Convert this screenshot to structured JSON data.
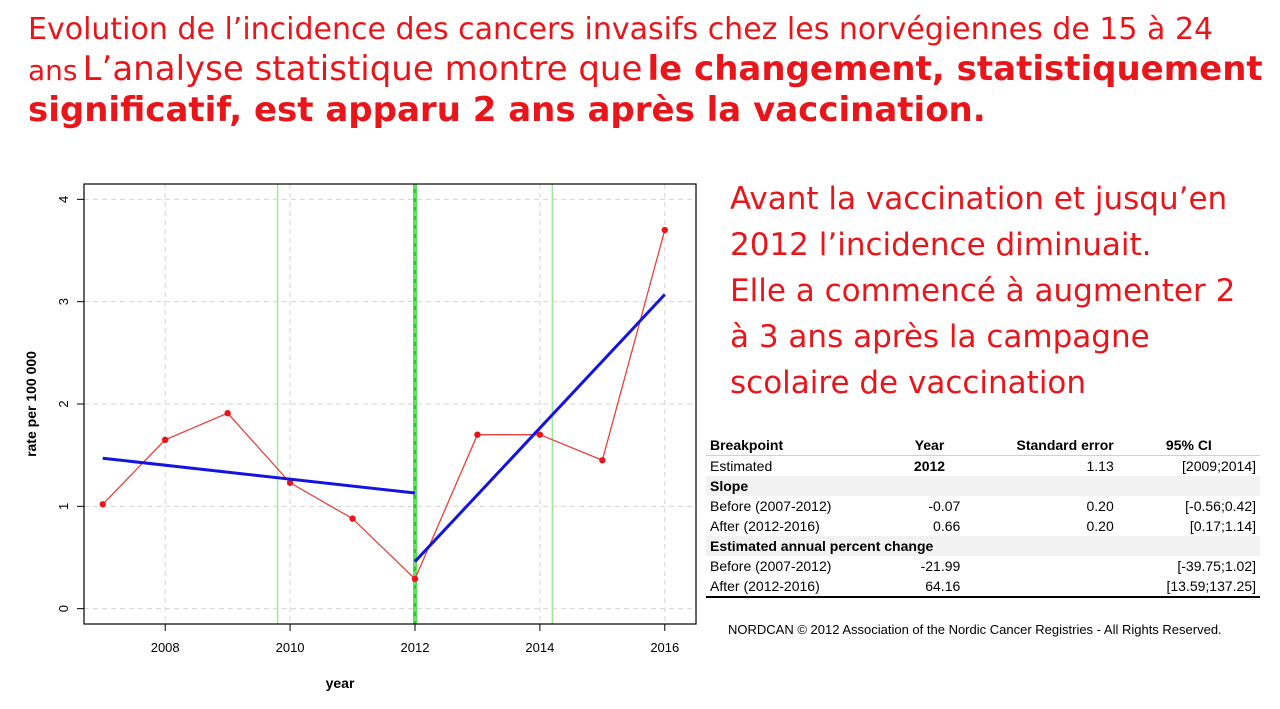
{
  "title": {
    "line1": "Evolution de l’incidence des cancers invasifs chez les norvégiennes de 15 à 24",
    "line2_prefix": "ans",
    "line2_normal": "L’analyse statistique montre que",
    "line2_bold": "le changement, statistiquement",
    "line3_bold": "significatif, est apparu 2 ans après la vaccination."
  },
  "side_text": [
    "Avant la vaccination et jusqu’en",
    "2012 l’incidence diminuait.",
    "Elle a commencé à augmenter 2",
    "à 3 ans après la campagne",
    "scolaire de vaccination"
  ],
  "colors": {
    "accent_text": "#e8161b",
    "observed_line": "#e8403c",
    "trend_line": "#1414e0",
    "breakpoint_line": "#1ed21e",
    "ci_line": "#9ee89e"
  },
  "chart_data": {
    "type": "line",
    "xlabel": "year",
    "ylabel": "rate per 100 000",
    "xlim": [
      2006.7,
      2016.5
    ],
    "ylim": [
      -0.15,
      4.15
    ],
    "xticks": [
      2008,
      2010,
      2012,
      2014,
      2016
    ],
    "yticks": [
      0,
      1,
      2,
      3,
      4
    ],
    "grid": true,
    "series": [
      {
        "role": "observed",
        "x": [
          2007,
          2008,
          2009,
          2010,
          2011,
          2012,
          2013,
          2014,
          2015,
          2016
        ],
        "values": [
          1.02,
          1.65,
          1.91,
          1.23,
          0.88,
          0.29,
          1.7,
          1.7,
          1.45,
          3.7
        ]
      },
      {
        "role": "trend-before",
        "x": [
          2007,
          2012
        ],
        "values": [
          1.47,
          1.13
        ]
      },
      {
        "role": "trend-after",
        "x": [
          2012,
          2016
        ],
        "values": [
          0.46,
          3.07
        ]
      }
    ],
    "vlines": [
      {
        "role": "breakpoint",
        "x": 2012
      },
      {
        "role": "ci-lower",
        "x": 2009.8
      },
      {
        "role": "ci-upper",
        "x": 2014.2
      }
    ]
  },
  "stats_table": {
    "header": [
      "Breakpoint",
      "Year",
      "Standard error",
      "95% CI"
    ],
    "estimated": [
      "Estimated",
      "2012",
      "1.13",
      "[2009;2014]"
    ],
    "slope_label": "Slope",
    "slope_rows": [
      [
        "Before (2007-2012)",
        "-0.07",
        "0.20",
        "[-0.56;0.42]"
      ],
      [
        "After (2012-2016)",
        "0.66",
        "0.20",
        "[0.17;1.14]"
      ]
    ],
    "eapc_label": "Estimated annual percent change",
    "eapc_rows": [
      [
        "Before (2007-2012)",
        "-21.99",
        "",
        "[-39.75;1.02]"
      ],
      [
        "After (2012-2016)",
        "64.16",
        "",
        "[13.59;137.25]"
      ]
    ]
  },
  "copyright": "NORDCAN © 2012 Association of the Nordic Cancer Registries - All Rights Reserved."
}
